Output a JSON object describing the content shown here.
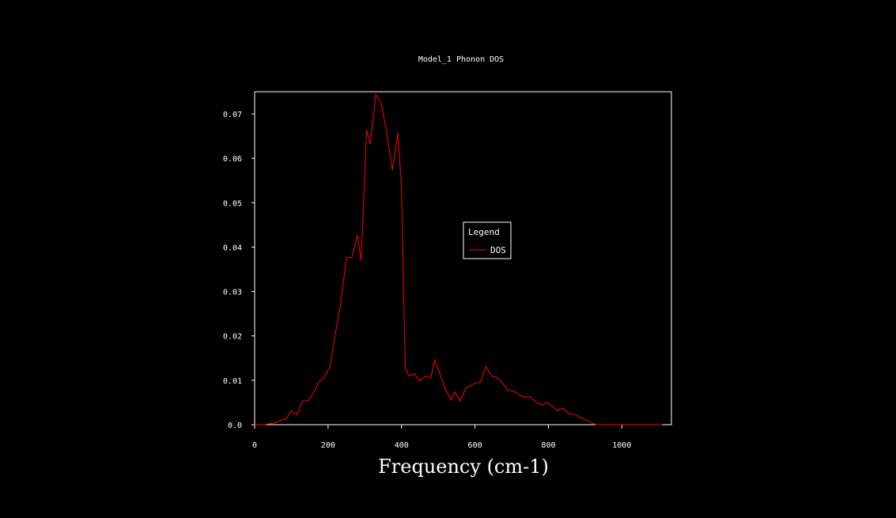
{
  "chart_data": {
    "type": "line",
    "title": "Model_1 Phonon DOS",
    "xlabel": "Frequency (cm-1)",
    "ylabel": "",
    "xlim": [
      0,
      1135
    ],
    "ylim": [
      0,
      0.075
    ],
    "x_ticks": [
      0,
      200,
      400,
      600,
      800,
      1000
    ],
    "y_ticks": [
      0.0,
      0.01,
      0.02,
      0.03,
      0.04,
      0.05,
      0.06,
      0.07
    ],
    "y_tick_labels": [
      "0.0",
      "0.01",
      "0.02",
      "0.03",
      "0.04",
      "0.05",
      "0.06",
      "0.07"
    ],
    "grid": false,
    "legend": {
      "title": "Legend",
      "placement": "center-right"
    },
    "series": [
      {
        "name": "DOS",
        "color": "#ff0000",
        "x": [
          0,
          27,
          40,
          55,
          70,
          85,
          100,
          115,
          130,
          145,
          160,
          175,
          190,
          205,
          220,
          235,
          250,
          265,
          280,
          290,
          305,
          315,
          330,
          345,
          360,
          375,
          390,
          400,
          410,
          420,
          435,
          450,
          465,
          480,
          490,
          505,
          520,
          535,
          545,
          560,
          575,
          590,
          600,
          615,
          630,
          645,
          660,
          675,
          690,
          705,
          720,
          735,
          750,
          765,
          780,
          795,
          810,
          825,
          840,
          855,
          870,
          885,
          900,
          915,
          930,
          945,
          960,
          975,
          990,
          1005,
          1020,
          1035,
          1050,
          1065,
          1080,
          1095,
          1110
        ],
        "values": [
          0.0,
          0.0,
          0.0002,
          0.0004,
          0.001,
          0.0012,
          0.0031,
          0.0022,
          0.0053,
          0.0054,
          0.0072,
          0.0096,
          0.0107,
          0.0131,
          0.0205,
          0.0277,
          0.0376,
          0.0377,
          0.0427,
          0.037,
          0.0664,
          0.0632,
          0.0744,
          0.0723,
          0.0656,
          0.0574,
          0.0657,
          0.0535,
          0.013,
          0.011,
          0.0115,
          0.0098,
          0.0109,
          0.0106,
          0.0146,
          0.0113,
          0.0078,
          0.0056,
          0.0074,
          0.0053,
          0.0083,
          0.0088,
          0.0094,
          0.0095,
          0.0131,
          0.011,
          0.0106,
          0.0094,
          0.0077,
          0.0076,
          0.0067,
          0.0062,
          0.0063,
          0.0052,
          0.0044,
          0.005,
          0.0042,
          0.0032,
          0.0037,
          0.0025,
          0.0023,
          0.0017,
          0.0011,
          0.0005,
          0.0,
          0.0,
          0.0,
          0.0,
          0.0,
          0.0,
          0.0,
          0.0,
          0.0,
          0.0,
          0.0,
          0.0,
          0.0
        ]
      }
    ]
  }
}
